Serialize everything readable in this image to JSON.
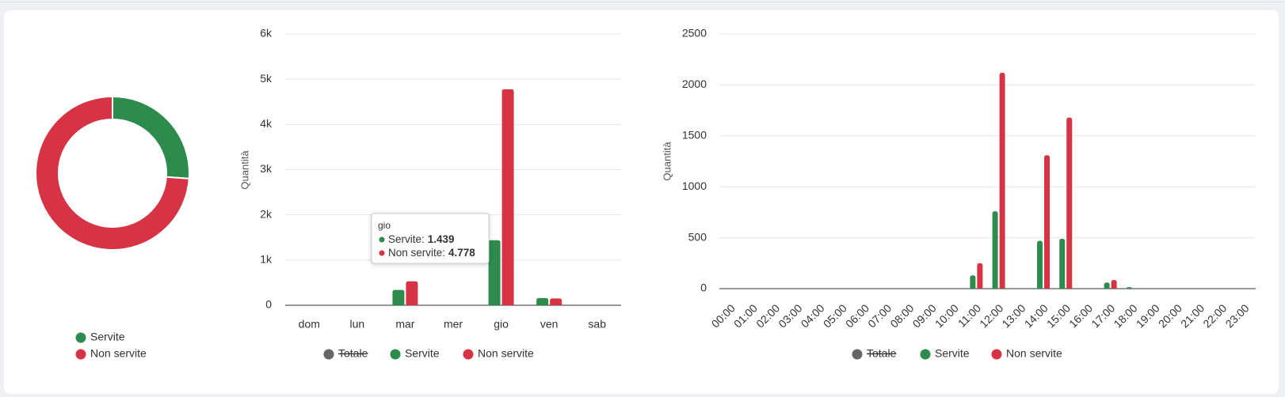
{
  "chart_data": [
    {
      "type": "pie",
      "categories": [
        "Servite",
        "Non servite"
      ],
      "values": [
        1925,
        5445
      ],
      "colors": [
        "#2e8b4e",
        "#d63444"
      ]
    },
    {
      "type": "bar",
      "y_label": "Quantità",
      "categories": [
        "dom",
        "lun",
        "mar",
        "mer",
        "gio",
        "ven",
        "sab"
      ],
      "series": [
        {
          "name": "Totale",
          "color": "#666666",
          "hidden": true,
          "values": [
            null,
            null,
            null,
            null,
            null,
            null,
            null
          ]
        },
        {
          "name": "Servite",
          "color": "#2e8b4e",
          "values": [
            0,
            0,
            340,
            0,
            1439,
            160,
            0
          ]
        },
        {
          "name": "Non servite",
          "color": "#d63444",
          "values": [
            0,
            0,
            530,
            0,
            4778,
            150,
            0
          ]
        }
      ],
      "ylim": [
        0,
        6000
      ],
      "yticks": [
        0,
        {
          "value": 1000,
          "label": "1k"
        },
        {
          "value": 2000,
          "label": "2k"
        },
        {
          "value": 3000,
          "label": "3k"
        },
        {
          "value": 4000,
          "label": "4k"
        },
        {
          "value": 5000,
          "label": "5k"
        },
        {
          "value": 6000,
          "label": "6k"
        }
      ],
      "grid": true,
      "tooltip": {
        "title": "gio",
        "entries": [
          {
            "name": "Servite:",
            "label": "1.439",
            "color": "#2e8b4e"
          },
          {
            "name": "Non servite:",
            "label": "4.778",
            "color": "#d63444"
          }
        ]
      }
    },
    {
      "type": "bar",
      "y_label": "Quantità",
      "categories": [
        "00:00",
        "01:00",
        "02:00",
        "03:00",
        "04:00",
        "05:00",
        "06:00",
        "07:00",
        "08:00",
        "09:00",
        "10:00",
        "11:00",
        "12:00",
        "13:00",
        "14:00",
        "15:00",
        "16:00",
        "17:00",
        "18:00",
        "19:00",
        "20:00",
        "21:00",
        "22:00",
        "23:00"
      ],
      "series": [
        {
          "name": "Totale",
          "color": "#666666",
          "hidden": true,
          "values": [
            null,
            null,
            null,
            null,
            null,
            null,
            null,
            null,
            null,
            null,
            null,
            null,
            null,
            null,
            null,
            null,
            null,
            null,
            null,
            null,
            null,
            null,
            null,
            null
          ]
        },
        {
          "name": "Servite",
          "color": "#2e8b4e",
          "values": [
            0,
            0,
            0,
            0,
            0,
            0,
            0,
            0,
            0,
            0,
            0,
            130,
            760,
            0,
            470,
            490,
            0,
            60,
            15,
            0,
            0,
            0,
            0,
            0
          ]
        },
        {
          "name": "Non servite",
          "color": "#d63444",
          "values": [
            0,
            0,
            0,
            0,
            0,
            0,
            0,
            0,
            0,
            0,
            0,
            250,
            2120,
            0,
            1310,
            1680,
            0,
            85,
            0,
            0,
            0,
            0,
            0,
            0
          ]
        }
      ],
      "ylim": [
        0,
        2500
      ],
      "yticks": [
        0,
        500,
        1000,
        1500,
        2000,
        2500
      ],
      "grid": true,
      "rotate_labels": true
    }
  ]
}
